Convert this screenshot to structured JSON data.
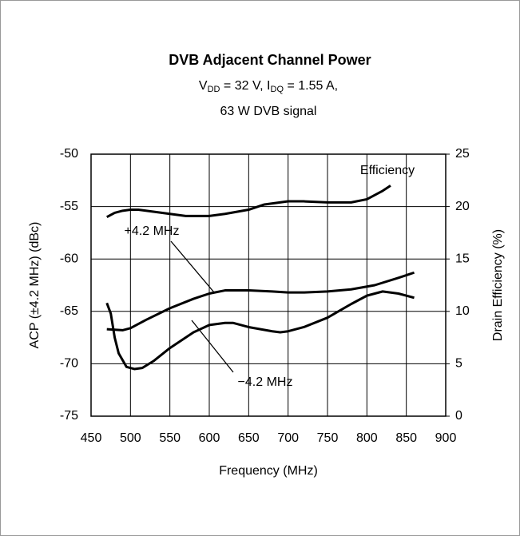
{
  "chart_data": {
    "type": "line",
    "title": "DVB Adjacent Channel Power",
    "subtitle": [
      "V",
      "DD",
      " = 32 V, I",
      "DQ",
      " = 1.55 A,"
    ],
    "subtitle2": "63 W DVB signal",
    "xlabel": "Frequency (MHz)",
    "ylabel": "ACP (±4.2 MHz) (dBc)",
    "y2label": "Drain Efficiency (%)",
    "xlim": [
      450,
      900
    ],
    "xticks": [
      450,
      500,
      550,
      600,
      650,
      700,
      750,
      800,
      850,
      900
    ],
    "ylim": [
      -75,
      -50
    ],
    "yticks": [
      -75,
      -70,
      -65,
      -60,
      -55,
      -50
    ],
    "y2lim": [
      0,
      25
    ],
    "y2ticks": [
      0,
      5,
      10,
      15,
      20,
      25
    ],
    "grid": true,
    "series": [
      {
        "name": "Efficiency",
        "color": "#000000",
        "axis": "y2",
        "x": [
          470,
          480,
          490,
          500,
          510,
          530,
          550,
          570,
          600,
          620,
          650,
          670,
          700,
          720,
          750,
          780,
          800,
          820,
          830
        ],
        "values": [
          19.0,
          19.4,
          19.6,
          19.7,
          19.7,
          19.5,
          19.3,
          19.1,
          19.1,
          19.3,
          19.7,
          20.2,
          20.5,
          20.5,
          20.4,
          20.4,
          20.7,
          21.5,
          22.0
        ]
      },
      {
        "name": "+4.2 MHz",
        "color": "#000000",
        "x": [
          470,
          490,
          500,
          520,
          550,
          580,
          600,
          620,
          650,
          680,
          700,
          720,
          750,
          780,
          810,
          840,
          860
        ],
        "values": [
          -66.7,
          -66.8,
          -66.6,
          -65.8,
          -64.7,
          -63.8,
          -63.3,
          -63.0,
          -63.0,
          -63.1,
          -63.2,
          -63.2,
          -63.1,
          -62.9,
          -62.5,
          -61.8,
          -61.3
        ]
      },
      {
        "name": "−4.2 MHz",
        "color": "#000000",
        "x": [
          470,
          475,
          480,
          485,
          495,
          505,
          515,
          530,
          550,
          580,
          600,
          620,
          630,
          650,
          680,
          690,
          700,
          720,
          750,
          780,
          800,
          820,
          840,
          860
        ],
        "values": [
          -64.2,
          -65.2,
          -67.5,
          -69.0,
          -70.3,
          -70.5,
          -70.4,
          -69.7,
          -68.5,
          -67.0,
          -66.3,
          -66.1,
          -66.1,
          -66.5,
          -66.9,
          -67.0,
          -66.9,
          -66.5,
          -65.6,
          -64.3,
          -63.5,
          -63.1,
          -63.3,
          -63.7
        ]
      }
    ]
  }
}
